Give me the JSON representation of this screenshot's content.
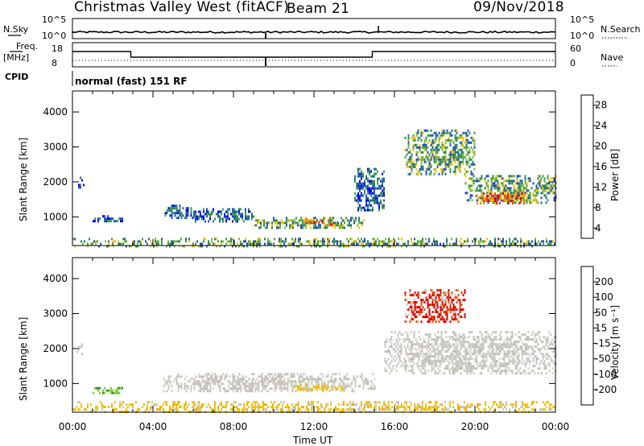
{
  "header": {
    "station": "Christmas Valley West (fitACF)",
    "beam": "Beam 21",
    "date": "09/Nov/2018"
  },
  "params": {
    "nsky_label": "N.Sky",
    "nsearch_label": "N.Search",
    "freq_label_1": "Freq.",
    "freq_label_2": "[MHz]",
    "nave_label": "Nave",
    "cpid_label": "CPID",
    "cpid_text": "normal (fast) 151 RF",
    "noise_ticks_left": [
      "10^5",
      "10^0"
    ],
    "noise_ticks_right": [
      "10^5",
      "10^0"
    ],
    "freq_ticks": [
      "18",
      "8"
    ],
    "nave_ticks": [
      "60",
      "0"
    ]
  },
  "chart_data": [
    {
      "type": "heatmap",
      "title": "",
      "quantity": "Power",
      "ylabel": "Slant Range [km]",
      "xlabel": "",
      "yticks": [
        "4000",
        "3000",
        "2000",
        "1000"
      ],
      "ylim": [
        180,
        4600
      ],
      "colorbar": {
        "label": "Power [dB]",
        "ticks": [
          "28",
          "24",
          "20",
          "16",
          "12",
          "8",
          "4"
        ],
        "colors": [
          "#0000ff",
          "#1f4fcf",
          "#2e7b6b",
          "#3ea14a",
          "#7dbd3a",
          "#f5c400",
          "#f08a00",
          "#e34a00",
          "#dd0000"
        ]
      },
      "regions": [
        {
          "hours": [
            0.2,
            0.6
          ],
          "range_km": [
            1850,
            2150
          ],
          "level": "low"
        },
        {
          "hours": [
            1.0,
            2.5
          ],
          "range_km": [
            850,
            1050
          ],
          "level": "low"
        },
        {
          "hours": [
            4.5,
            6.0
          ],
          "range_km": [
            1000,
            1350
          ],
          "level": "low"
        },
        {
          "hours": [
            6.0,
            9.0
          ],
          "range_km": [
            900,
            1250
          ],
          "level": "low"
        },
        {
          "hours": [
            9.0,
            14.5
          ],
          "range_km": [
            700,
            1000
          ],
          "level": "mid"
        },
        {
          "hours": [
            11.5,
            13.0
          ],
          "range_km": [
            800,
            950
          ],
          "level": "high"
        },
        {
          "hours": [
            14.0,
            15.5
          ],
          "range_km": [
            1200,
            2400
          ],
          "level": "low"
        },
        {
          "hours": [
            16.5,
            20.0
          ],
          "range_km": [
            2200,
            3500
          ],
          "level": "mid"
        },
        {
          "hours": [
            19.5,
            24.0
          ],
          "range_km": [
            1400,
            2200
          ],
          "level": "mid"
        },
        {
          "hours": [
            20.0,
            22.5
          ],
          "range_km": [
            1400,
            1700
          ],
          "level": "high"
        },
        {
          "hours": [
            0.0,
            24.0
          ],
          "range_km": [
            180,
            400
          ],
          "level": "mid"
        }
      ]
    },
    {
      "type": "heatmap",
      "title": "",
      "quantity": "Velocity",
      "ylabel": "Slant Range [km]",
      "xlabel": "Time UT",
      "xticks": [
        "00:00",
        "04:00",
        "08:00",
        "12:00",
        "16:00",
        "20:00",
        "00:00"
      ],
      "yticks": [
        "4000",
        "3000",
        "2000",
        "1000"
      ],
      "ylim": [
        180,
        4600
      ],
      "colorbar": {
        "label": "Velocity [m s⁻¹]",
        "ticks": [
          "200",
          "100",
          "50",
          "15",
          "-15",
          "-50",
          "-100",
          "-200"
        ],
        "colors": [
          "#1f3fbf",
          "#2f6a9f",
          "#3a8f3a",
          "#7ccc3a",
          "#c8c8c0",
          "#f5c400",
          "#f08a00",
          "#e34a00",
          "#dd0000"
        ]
      },
      "regions": [
        {
          "hours": [
            0.2,
            0.6
          ],
          "range_km": [
            1850,
            2150
          ],
          "level": "ground"
        },
        {
          "hours": [
            1.0,
            2.5
          ],
          "range_km": [
            700,
            900
          ],
          "level": "pos"
        },
        {
          "hours": [
            4.5,
            15.0
          ],
          "range_km": [
            800,
            1300
          ],
          "level": "ground"
        },
        {
          "hours": [
            11.0,
            13.5
          ],
          "range_km": [
            800,
            1000
          ],
          "level": "neg"
        },
        {
          "hours": [
            16.5,
            19.5
          ],
          "range_km": [
            2800,
            3700
          ],
          "level": "strongneg"
        },
        {
          "hours": [
            15.5,
            24.0
          ],
          "range_km": [
            1300,
            2500
          ],
          "level": "ground"
        },
        {
          "hours": [
            0.0,
            24.0
          ],
          "range_km": [
            180,
            500
          ],
          "level": "neg"
        }
      ]
    }
  ]
}
